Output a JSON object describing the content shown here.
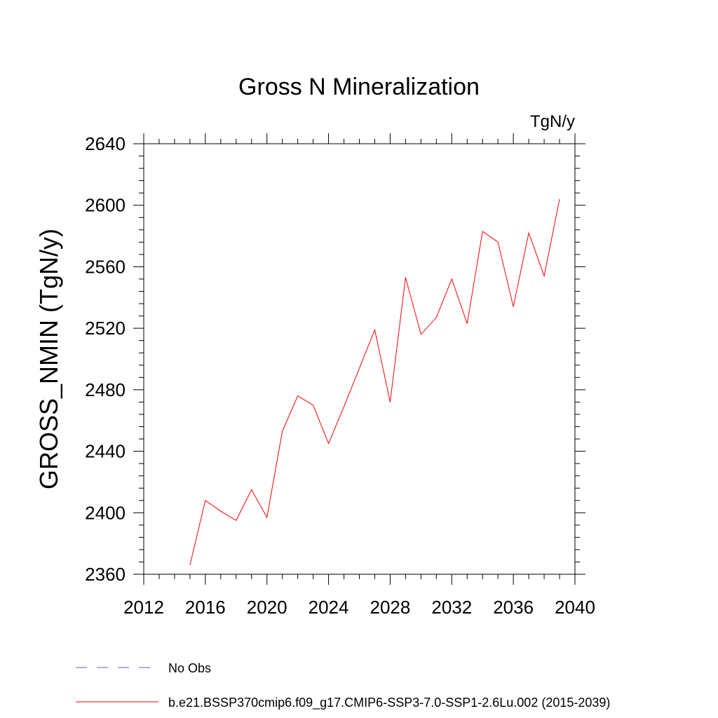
{
  "chart_data": {
    "type": "line",
    "title": "Gross N Mineralization",
    "units_label": "TgN/y",
    "xlabel": "",
    "ylabel": "GROSS_NMIN  (TgN/y)",
    "xlim": [
      2012,
      2040
    ],
    "ylim": [
      2360,
      2640
    ],
    "x_ticks": [
      2012,
      2016,
      2020,
      2024,
      2028,
      2032,
      2036,
      2040
    ],
    "y_ticks": [
      2360,
      2400,
      2440,
      2480,
      2520,
      2560,
      2600,
      2640
    ],
    "x_minor_step": 1,
    "y_minor_step": 8,
    "grid": false,
    "legend_position": "bottom-left",
    "series": [
      {
        "name": "No Obs",
        "color": "#6a5acd",
        "style": "dashed",
        "x": [],
        "values": []
      },
      {
        "name": "b.e21.BSSP370cmip6.f09_g17.CMIP6-SSP3-7.0-SSP1-2.6Lu.002 (2015-2039)",
        "color": "#ff0000",
        "style": "solid",
        "x": [
          2015,
          2016,
          2017,
          2018,
          2019,
          2020,
          2021,
          2022,
          2023,
          2024,
          2025,
          2026,
          2027,
          2028,
          2029,
          2030,
          2031,
          2032,
          2033,
          2034,
          2035,
          2036,
          2037,
          2038,
          2039
        ],
        "values": [
          2366,
          2408,
          2401,
          2395,
          2415,
          2397,
          2453,
          2476,
          2470,
          2445,
          2469,
          2494,
          2519,
          2472,
          2553,
          2516,
          2527,
          2552,
          2523,
          2583,
          2576,
          2534,
          2582,
          2554,
          2604
        ]
      }
    ]
  }
}
